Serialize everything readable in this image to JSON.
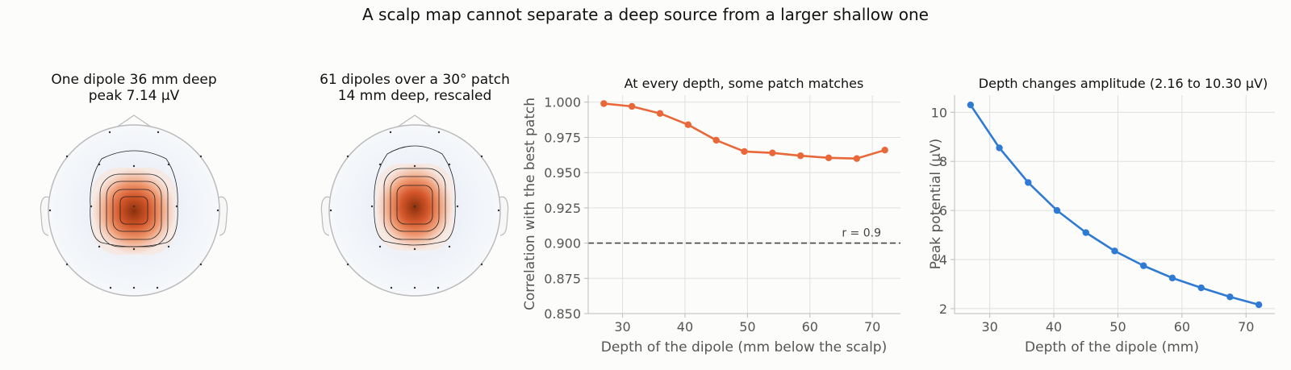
{
  "figure": {
    "title": "A scalp map cannot separate a deep source from a larger shallow one"
  },
  "topomaps": [
    {
      "title_line1": "One dipole 36 mm deep",
      "title_line2": "peak 7.14 µV"
    },
    {
      "title_line1": "61 dipoles over a 30° patch",
      "title_line2": "14 mm deep, rescaled"
    }
  ],
  "colors": {
    "orange": "#e8683a",
    "blue": "#2f7bd4",
    "warm_dark": "#7a2a08",
    "cool_light": "#dde6f2"
  },
  "chart_data": [
    {
      "type": "line",
      "title": "At every depth, some patch matches",
      "xlabel": "Depth of the dipole (mm below the scalp)",
      "ylabel": "Correlation with the best patch",
      "x": [
        27,
        31.5,
        36,
        40.5,
        45,
        49.5,
        54,
        58.5,
        63,
        67.5,
        72
      ],
      "series": [
        {
          "values": [
            0.999,
            0.997,
            0.992,
            0.984,
            0.973,
            0.965,
            0.964,
            0.962,
            0.9605,
            0.96,
            0.966
          ]
        }
      ],
      "xlim": [
        24.5,
        74.5
      ],
      "ylim": [
        0.85,
        1.005
      ],
      "xticks": [
        30,
        40,
        50,
        60,
        70
      ],
      "yticks": [
        "0.850",
        "0.875",
        "0.900",
        "0.925",
        "0.950",
        "0.975",
        "1.000"
      ],
      "reference_line": {
        "y": 0.9,
        "label": "r = 0.9",
        "style": "dashed"
      },
      "grid": true
    },
    {
      "type": "line",
      "title": "Depth changes amplitude (2.16 to 10.30 µV)",
      "xlabel": "Depth of the dipole (mm)",
      "ylabel": "Peak potential (µV)",
      "x": [
        27,
        31.5,
        36,
        40.5,
        45,
        49.5,
        54,
        58.5,
        63,
        67.5,
        72
      ],
      "series": [
        {
          "values": [
            10.3,
            8.55,
            7.14,
            6.0,
            5.1,
            4.35,
            3.75,
            3.25,
            2.85,
            2.48,
            2.16
          ]
        }
      ],
      "xlim": [
        24.5,
        74.5
      ],
      "ylim": [
        1.8,
        10.7
      ],
      "xticks": [
        30,
        40,
        50,
        60,
        70
      ],
      "yticks": [
        "2",
        "4",
        "6",
        "8",
        "10"
      ],
      "grid": true
    }
  ]
}
